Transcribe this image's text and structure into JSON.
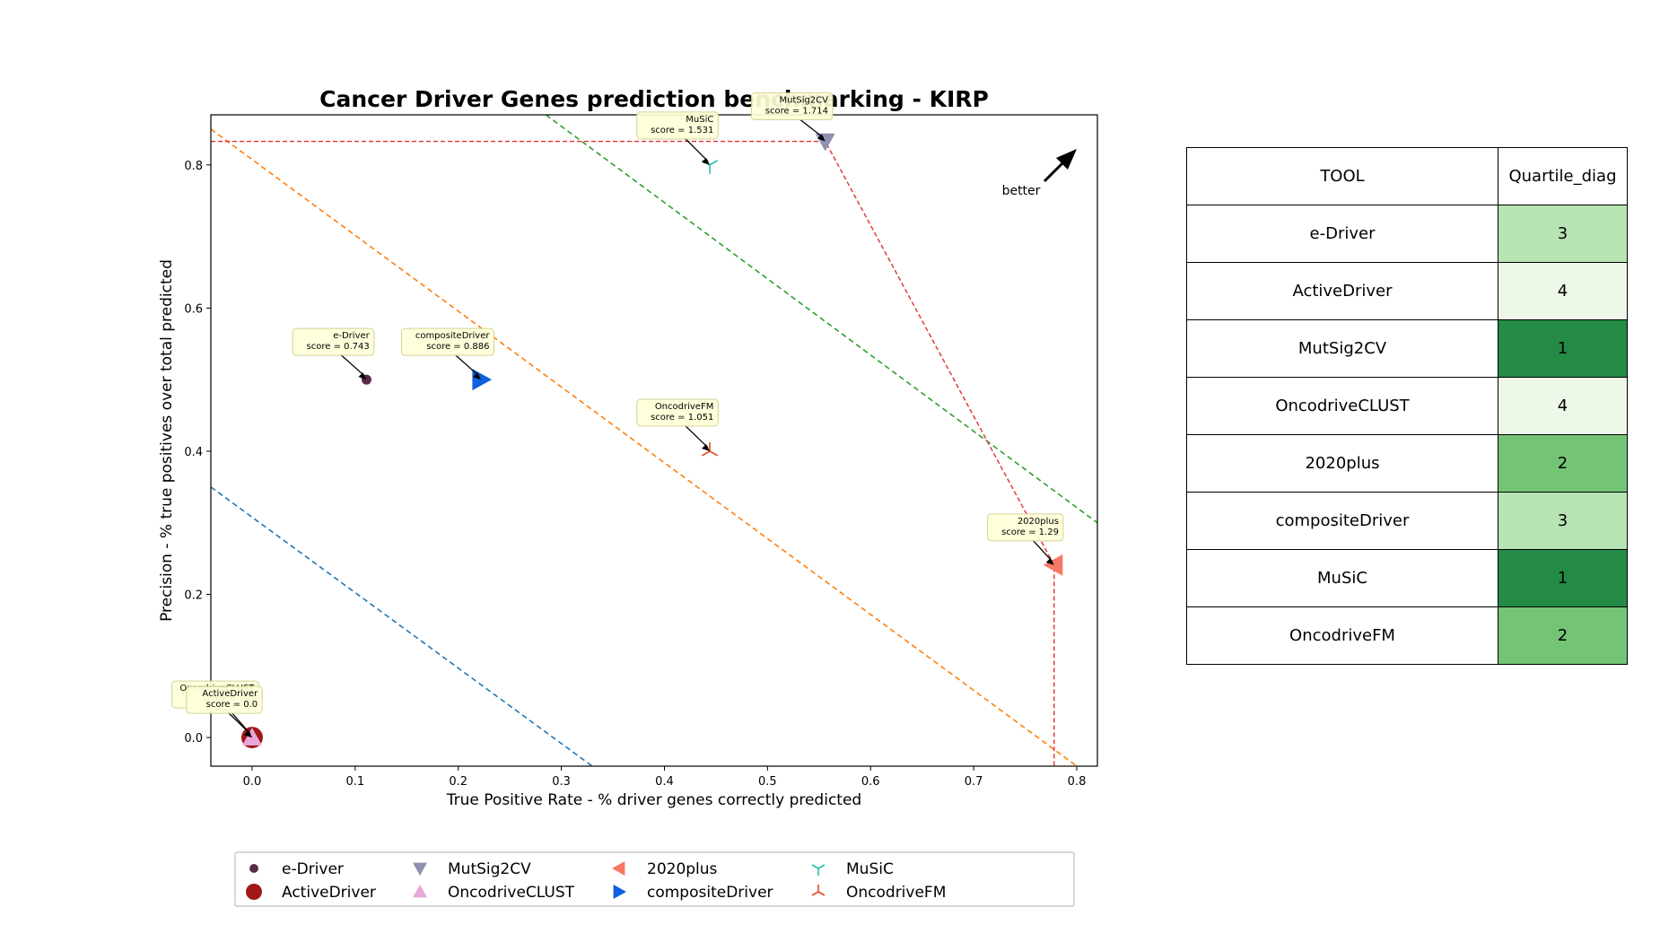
{
  "chart_data": {
    "type": "scatter",
    "title": "Cancer Driver Genes prediction benchmarking - KIRP",
    "xlabel": "True Positive Rate - % driver genes correctly predicted",
    "ylabel": "Precision - % true positives over total predicted",
    "xlim": [
      -0.04,
      0.82
    ],
    "ylim": [
      -0.04,
      0.87
    ],
    "xticks": [
      "0.0",
      "0.1",
      "0.2",
      "0.3",
      "0.4",
      "0.5",
      "0.6",
      "0.7",
      "0.8"
    ],
    "yticks": [
      "0.0",
      "0.2",
      "0.4",
      "0.6",
      "0.8"
    ],
    "better_label": "better",
    "legend_placement": "bottom",
    "series": [
      {
        "name": "e-Driver",
        "x": 0.111,
        "y": 0.5,
        "marker": "dot",
        "color": "#5b2a4a",
        "annotation": [
          "e-Driver",
          "score = 0.743"
        ]
      },
      {
        "name": "ActiveDriver",
        "x": 0.0,
        "y": 0.0,
        "marker": "circle",
        "color": "#a01818",
        "annotation": [
          "ActiveDriver",
          "score = 0.0"
        ]
      },
      {
        "name": "MutSig2CV",
        "x": 0.556,
        "y": 0.833,
        "marker": "triangle-down",
        "color": "#9090b0",
        "annotation": [
          "MutSig2CV",
          "score = 1.714"
        ]
      },
      {
        "name": "OncodriveCLUST",
        "x": 0.0,
        "y": 0.0,
        "marker": "triangle-up",
        "color": "#e8a8d8",
        "annotation": [
          "OncodriveCLUST",
          "score = 0.0"
        ]
      },
      {
        "name": "2020plus",
        "x": 0.778,
        "y": 0.241,
        "marker": "triangle-left",
        "color": "#f87868",
        "annotation": [
          "2020plus",
          "score = 1.29"
        ]
      },
      {
        "name": "compositeDriver",
        "x": 0.222,
        "y": 0.5,
        "marker": "triangle-right",
        "color": "#1060e0",
        "annotation": [
          "compositeDriver",
          "score = 0.886"
        ]
      },
      {
        "name": "MuSiC",
        "x": 0.444,
        "y": 0.8,
        "marker": "tri-down",
        "color": "#20c0b0",
        "annotation": [
          "MuSiC",
          "score = 1.531"
        ]
      },
      {
        "name": "OncodriveFM",
        "x": 0.444,
        "y": 0.4,
        "marker": "tri-up",
        "color": "#e04828",
        "annotation": [
          "OncodriveFM",
          "score = 1.051"
        ]
      }
    ],
    "diagonals": [
      {
        "color": "#1f77b4",
        "p1": [
          -0.04,
          0.35
        ],
        "p2": [
          0.33,
          -0.04
        ]
      },
      {
        "color": "#ff7f0e",
        "p1": [
          -0.04,
          0.85
        ],
        "p2": [
          0.8,
          -0.04
        ]
      },
      {
        "color": "#2ca02c",
        "p1": [
          0.285,
          0.87
        ],
        "p2": [
          0.82,
          0.3
        ]
      }
    ],
    "pareto": {
      "color": "#e03030",
      "points": [
        [
          -0.04,
          0.833
        ],
        [
          0.556,
          0.833
        ],
        [
          0.778,
          0.241
        ],
        [
          0.778,
          -0.04
        ]
      ]
    },
    "table": {
      "headers": [
        "TOOL",
        "Quartile_diag"
      ],
      "rows": [
        {
          "tool": "e-Driver",
          "quartile": "3",
          "color": "#b8e3b2"
        },
        {
          "tool": "ActiveDriver",
          "quartile": "4",
          "color": "#edf8e9"
        },
        {
          "tool": "MutSig2CV",
          "quartile": "1",
          "color": "#238b45"
        },
        {
          "tool": "OncodriveCLUST",
          "quartile": "4",
          "color": "#edf8e9"
        },
        {
          "tool": "2020plus",
          "quartile": "2",
          "color": "#74c476"
        },
        {
          "tool": "compositeDriver",
          "quartile": "3",
          "color": "#b8e3b2"
        },
        {
          "tool": "MuSiC",
          "quartile": "1",
          "color": "#238b45"
        },
        {
          "tool": "OncodriveFM",
          "quartile": "2",
          "color": "#74c476"
        }
      ]
    }
  }
}
